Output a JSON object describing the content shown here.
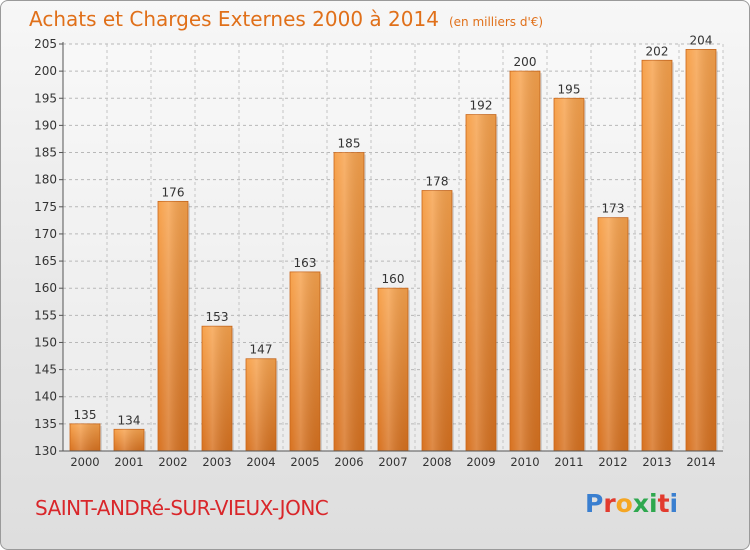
{
  "chart_data": {
    "type": "bar",
    "title": "Achats et Charges Externes 2000 à 2014",
    "subtitle": "(en milliers d'€)",
    "categories": [
      "2000",
      "2001",
      "2002",
      "2003",
      "2004",
      "2005",
      "2006",
      "2007",
      "2008",
      "2009",
      "2010",
      "2011",
      "2012",
      "2013",
      "2014"
    ],
    "values": [
      135,
      134,
      176,
      153,
      147,
      163,
      185,
      160,
      178,
      192,
      200,
      195,
      173,
      202,
      204
    ],
    "ylim": [
      130,
      205
    ],
    "yticks": [
      130,
      135,
      140,
      145,
      150,
      155,
      160,
      165,
      170,
      175,
      180,
      185,
      190,
      195,
      200,
      205
    ],
    "grid": true,
    "bar_color": "#f0902e",
    "xlabel": "",
    "ylabel": ""
  },
  "footer": {
    "town": "SAINT-ANDRé-SUR-VIEUX-JONC",
    "brand": "Proxiti"
  }
}
